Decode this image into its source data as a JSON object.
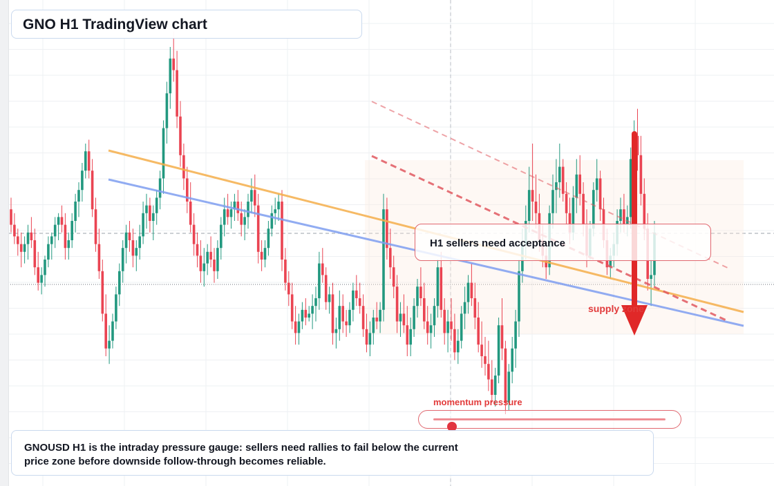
{
  "title": "GNO H1 TradingView chart",
  "callout_text": "H1 sellers need acceptance",
  "supply_label": "supply zone",
  "gauge": {
    "label": "momentum pressure",
    "level": 0.08
  },
  "note": {
    "line1": "GNOUSD H1 is the intraday pressure gauge: sellers need rallies to fail below the current",
    "line2": "price zone before downside follow-through becomes reliable."
  },
  "colors": {
    "up": "#22987f",
    "down": "#ea4452",
    "trend_orange": "#f5ae4a",
    "trend_blue": "#7e9ef0",
    "bear_dashed": "#e0585f",
    "arrow": "#e02828",
    "zone": "#fdecdf"
  },
  "chart_data": {
    "type": "candlestick",
    "symbol": "GNOUSD",
    "timeframe": "H1",
    "ylim": [
      0,
      100
    ],
    "candles": [
      [
        53,
        56,
        47,
        49
      ],
      [
        49,
        52,
        44,
        46
      ],
      [
        46,
        48,
        41,
        44
      ],
      [
        44,
        47,
        38,
        42
      ],
      [
        42,
        46,
        39,
        44
      ],
      [
        44,
        49,
        40,
        47
      ],
      [
        47,
        51,
        43,
        45
      ],
      [
        45,
        48,
        36,
        38
      ],
      [
        38,
        42,
        32,
        34
      ],
      [
        34,
        38,
        31,
        36
      ],
      [
        36,
        41,
        33,
        40
      ],
      [
        40,
        46,
        38,
        44
      ],
      [
        44,
        47,
        40,
        46
      ],
      [
        46,
        51,
        43,
        49
      ],
      [
        49,
        52,
        45,
        51
      ],
      [
        51,
        54,
        47,
        49
      ],
      [
        49,
        52,
        40,
        43
      ],
      [
        43,
        47,
        40,
        45
      ],
      [
        45,
        52,
        43,
        50
      ],
      [
        50,
        57,
        47,
        55
      ],
      [
        55,
        60,
        51,
        58
      ],
      [
        58,
        65,
        55,
        63
      ],
      [
        63,
        70,
        61,
        68
      ],
      [
        68,
        71,
        61,
        63
      ],
      [
        63,
        66,
        51,
        53
      ],
      [
        53,
        56,
        42,
        44
      ],
      [
        44,
        48,
        35,
        37
      ],
      [
        37,
        40,
        24,
        26
      ],
      [
        26,
        31,
        15,
        17
      ],
      [
        17,
        23,
        13,
        19
      ],
      [
        19,
        26,
        17,
        24
      ],
      [
        24,
        33,
        22,
        31
      ],
      [
        31,
        39,
        28,
        37
      ],
      [
        37,
        45,
        34,
        43
      ],
      [
        43,
        49,
        39,
        47
      ],
      [
        47,
        50,
        42,
        45
      ],
      [
        45,
        48,
        38,
        41
      ],
      [
        41,
        45,
        37,
        43
      ],
      [
        43,
        49,
        40,
        46
      ],
      [
        46,
        55,
        44,
        52
      ],
      [
        52,
        57,
        48,
        54
      ],
      [
        54,
        56,
        47,
        50
      ],
      [
        50,
        54,
        45,
        52
      ],
      [
        52,
        58,
        49,
        56
      ],
      [
        56,
        63,
        53,
        61
      ],
      [
        61,
        76,
        57,
        74
      ],
      [
        74,
        86,
        70,
        83
      ],
      [
        83,
        95,
        79,
        92
      ],
      [
        92,
        99,
        86,
        89
      ],
      [
        89,
        94,
        74,
        77
      ],
      [
        77,
        81,
        64,
        67
      ],
      [
        67,
        70,
        58,
        61
      ],
      [
        61,
        64,
        52,
        55
      ],
      [
        55,
        60,
        47,
        49
      ],
      [
        49,
        52,
        41,
        44
      ],
      [
        44,
        47,
        38,
        41
      ],
      [
        41,
        45,
        34,
        37
      ],
      [
        37,
        43,
        33,
        39
      ],
      [
        39,
        44,
        36,
        42
      ],
      [
        42,
        46,
        38,
        40
      ],
      [
        40,
        43,
        34,
        37
      ],
      [
        37,
        45,
        35,
        43
      ],
      [
        43,
        51,
        40,
        49
      ],
      [
        49,
        56,
        46,
        53
      ],
      [
        53,
        57,
        49,
        51
      ],
      [
        51,
        55,
        48,
        53
      ],
      [
        53,
        57,
        50,
        55
      ],
      [
        55,
        58,
        50,
        52
      ],
      [
        52,
        55,
        46,
        49
      ],
      [
        49,
        53,
        45,
        51
      ],
      [
        51,
        57,
        48,
        55
      ],
      [
        55,
        61,
        52,
        58
      ],
      [
        58,
        62,
        51,
        54
      ],
      [
        54,
        57,
        39,
        42
      ],
      [
        42,
        45,
        37,
        40
      ],
      [
        40,
        45,
        38,
        43
      ],
      [
        43,
        50,
        41,
        48
      ],
      [
        48,
        54,
        46,
        52
      ],
      [
        52,
        56,
        49,
        53
      ],
      [
        53,
        57,
        50,
        55
      ],
      [
        55,
        58,
        37,
        40
      ],
      [
        40,
        43,
        32,
        34
      ],
      [
        34,
        37,
        28,
        31
      ],
      [
        31,
        34,
        22,
        24
      ],
      [
        24,
        28,
        18,
        21
      ],
      [
        21,
        26,
        18,
        24
      ],
      [
        24,
        29,
        22,
        27
      ],
      [
        27,
        30,
        23,
        25
      ],
      [
        25,
        28,
        24,
        26
      ],
      [
        26,
        31,
        22,
        28
      ],
      [
        28,
        33,
        24,
        30
      ],
      [
        30,
        42,
        27,
        39
      ],
      [
        39,
        43,
        34,
        36
      ],
      [
        36,
        38,
        27,
        29
      ],
      [
        29,
        33,
        26,
        31
      ],
      [
        31,
        34,
        18,
        21
      ],
      [
        21,
        25,
        17,
        22
      ],
      [
        22,
        32,
        19,
        28
      ],
      [
        28,
        31,
        21,
        24
      ],
      [
        24,
        27,
        20,
        23
      ],
      [
        23,
        29,
        21,
        27
      ],
      [
        27,
        34,
        24,
        32
      ],
      [
        32,
        36,
        28,
        30
      ],
      [
        30,
        34,
        26,
        28
      ],
      [
        28,
        31,
        20,
        22
      ],
      [
        22,
        26,
        16,
        18
      ],
      [
        18,
        24,
        15,
        21
      ],
      [
        21,
        27,
        18,
        25
      ],
      [
        25,
        29,
        22,
        24
      ],
      [
        24,
        29,
        21,
        27
      ],
      [
        27,
        57,
        24,
        53
      ],
      [
        53,
        56,
        40,
        43
      ],
      [
        43,
        48,
        35,
        38
      ],
      [
        38,
        41,
        30,
        33
      ],
      [
        33,
        36,
        21,
        24
      ],
      [
        24,
        29,
        20,
        26
      ],
      [
        26,
        31,
        21,
        23
      ],
      [
        23,
        28,
        15,
        18
      ],
      [
        18,
        25,
        15,
        22
      ],
      [
        22,
        30,
        20,
        28
      ],
      [
        28,
        35,
        25,
        33
      ],
      [
        33,
        38,
        28,
        30
      ],
      [
        30,
        34,
        22,
        24
      ],
      [
        24,
        28,
        18,
        21
      ],
      [
        21,
        26,
        17,
        23
      ],
      [
        23,
        30,
        20,
        28
      ],
      [
        28,
        40,
        25,
        38
      ],
      [
        38,
        42,
        25,
        27
      ],
      [
        27,
        30,
        18,
        21
      ],
      [
        21,
        27,
        16,
        24
      ],
      [
        24,
        30,
        19,
        22
      ],
      [
        22,
        26,
        14,
        16
      ],
      [
        16,
        22,
        13,
        19
      ],
      [
        19,
        28,
        17,
        26
      ],
      [
        26,
        33,
        22,
        29
      ],
      [
        29,
        36,
        26,
        34
      ],
      [
        34,
        39,
        28,
        30
      ],
      [
        30,
        34,
        22,
        25
      ],
      [
        25,
        29,
        16,
        18
      ],
      [
        18,
        24,
        12,
        15
      ],
      [
        15,
        20,
        10,
        13
      ],
      [
        13,
        19,
        6,
        9
      ],
      [
        9,
        14,
        3,
        5
      ],
      [
        5,
        12,
        2,
        10
      ],
      [
        10,
        25,
        8,
        23
      ],
      [
        23,
        30,
        14,
        17
      ],
      [
        17,
        19,
        0,
        3
      ],
      [
        3,
        13,
        1,
        11
      ],
      [
        11,
        20,
        8,
        17
      ],
      [
        17,
        27,
        12,
        24
      ],
      [
        24,
        40,
        20,
        37
      ],
      [
        37,
        48,
        34,
        44
      ],
      [
        44,
        54,
        40,
        50
      ],
      [
        50,
        64,
        47,
        58
      ],
      [
        58,
        70,
        50,
        55
      ],
      [
        55,
        62,
        48,
        52
      ],
      [
        52,
        57,
        42,
        45
      ],
      [
        45,
        49,
        38,
        41
      ],
      [
        41,
        44,
        35,
        38
      ],
      [
        38,
        54,
        36,
        52
      ],
      [
        52,
        62,
        48,
        58
      ],
      [
        58,
        66,
        52,
        60
      ],
      [
        60,
        70,
        56,
        64
      ],
      [
        64,
        66,
        55,
        57
      ],
      [
        57,
        60,
        49,
        52
      ],
      [
        52,
        56,
        44,
        47
      ],
      [
        47,
        59,
        45,
        56
      ],
      [
        56,
        66,
        52,
        62
      ],
      [
        62,
        67,
        54,
        57
      ],
      [
        57,
        60,
        46,
        49
      ],
      [
        49,
        53,
        38,
        41
      ],
      [
        41,
        50,
        40,
        48
      ],
      [
        48,
        60,
        46,
        58
      ],
      [
        58,
        66,
        55,
        61
      ],
      [
        61,
        63,
        50,
        53
      ],
      [
        53,
        56,
        43,
        45
      ],
      [
        45,
        48,
        36,
        38
      ],
      [
        38,
        43,
        35,
        41
      ],
      [
        41,
        47,
        38,
        44
      ],
      [
        44,
        53,
        41,
        50
      ],
      [
        50,
        56,
        47,
        53
      ],
      [
        53,
        57,
        47,
        49
      ],
      [
        49,
        54,
        46,
        51
      ],
      [
        51,
        69,
        48,
        66
      ],
      [
        66,
        76,
        61,
        72
      ],
      [
        72,
        79,
        63,
        67
      ],
      [
        67,
        72,
        54,
        57
      ],
      [
        57,
        61,
        45,
        48
      ],
      [
        48,
        52,
        32,
        35
      ],
      [
        35,
        40,
        28,
        36
      ],
      [
        36,
        50,
        33,
        47
      ]
    ]
  }
}
